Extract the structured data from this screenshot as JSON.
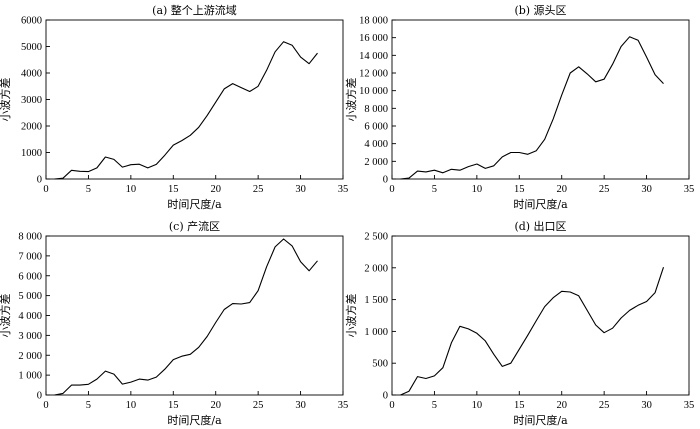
{
  "chart_data": [
    {
      "type": "line",
      "title": "(a) 整个上游流域",
      "xlabel": "时间尺度/a",
      "ylabel": "小波方差",
      "xlim": [
        0,
        35
      ],
      "ylim": [
        0,
        6000
      ],
      "xticks": [
        0,
        5,
        10,
        15,
        20,
        25,
        30,
        35
      ],
      "yticks": [
        0,
        1000,
        2000,
        3000,
        4000,
        5000,
        6000
      ],
      "ytick_labels": [
        "0",
        "1000",
        "2000",
        "3000",
        "4000",
        "5000",
        "6000"
      ],
      "grid": false,
      "series": [
        {
          "x": [
            1,
            2,
            3,
            4,
            5,
            6,
            7,
            8,
            9,
            10,
            11,
            12,
            13,
            14,
            15,
            16,
            17,
            18,
            19,
            20,
            21,
            22,
            23,
            24,
            25,
            26,
            27,
            28,
            29,
            30,
            31,
            32
          ],
          "y": [
            0,
            30,
            330,
            290,
            280,
            420,
            830,
            740,
            450,
            540,
            560,
            420,
            550,
            900,
            1280,
            1450,
            1650,
            1950,
            2400,
            2900,
            3400,
            3600,
            3450,
            3300,
            3500,
            4100,
            4800,
            5180,
            5050,
            4600,
            4350,
            4750
          ]
        }
      ]
    },
    {
      "type": "line",
      "title": "(b) 源头区",
      "xlabel": "时间尺度/a",
      "ylabel": "小波方差",
      "xlim": [
        0,
        35
      ],
      "ylim": [
        0,
        18000
      ],
      "xticks": [
        0,
        5,
        10,
        15,
        20,
        25,
        30,
        35
      ],
      "yticks": [
        0,
        2000,
        4000,
        6000,
        8000,
        10000,
        12000,
        14000,
        16000,
        18000
      ],
      "ytick_labels": [
        "0",
        "2 000",
        "4 000",
        "6 000",
        "8 000",
        "10 000",
        "12 000",
        "14 000",
        "16 000",
        "18 000"
      ],
      "grid": false,
      "series": [
        {
          "x": [
            1,
            2,
            3,
            4,
            5,
            6,
            7,
            8,
            9,
            10,
            11,
            12,
            13,
            14,
            15,
            16,
            17,
            18,
            19,
            20,
            21,
            22,
            23,
            24,
            25,
            26,
            27,
            28,
            29,
            30,
            31,
            32
          ],
          "y": [
            0,
            100,
            900,
            800,
            1000,
            700,
            1100,
            1000,
            1400,
            1700,
            1200,
            1500,
            2500,
            3000,
            3000,
            2800,
            3200,
            4500,
            6800,
            9500,
            12000,
            12700,
            11900,
            11000,
            11300,
            13000,
            15000,
            16100,
            15700,
            13800,
            11800,
            10800
          ]
        }
      ]
    },
    {
      "type": "line",
      "title": "(c) 产流区",
      "xlabel": "时间尺度/a",
      "ylabel": "小波方差",
      "xlim": [
        0,
        35
      ],
      "ylim": [
        0,
        8000
      ],
      "xticks": [
        0,
        5,
        10,
        15,
        20,
        25,
        30,
        35
      ],
      "yticks": [
        0,
        1000,
        2000,
        3000,
        4000,
        5000,
        6000,
        7000,
        8000
      ],
      "ytick_labels": [
        "0",
        "1 000",
        "2 000",
        "3 000",
        "4 000",
        "5 000",
        "6 000",
        "7 000",
        "8 000"
      ],
      "grid": false,
      "series": [
        {
          "x": [
            1,
            2,
            3,
            4,
            5,
            6,
            7,
            8,
            9,
            10,
            11,
            12,
            13,
            14,
            15,
            16,
            17,
            18,
            19,
            20,
            21,
            22,
            23,
            24,
            25,
            26,
            27,
            28,
            29,
            30,
            31,
            32
          ],
          "y": [
            0,
            80,
            500,
            500,
            540,
            800,
            1200,
            1050,
            550,
            650,
            800,
            750,
            900,
            1300,
            1780,
            1950,
            2050,
            2400,
            2950,
            3650,
            4300,
            4600,
            4580,
            4650,
            5250,
            6450,
            7450,
            7850,
            7500,
            6700,
            6250,
            6750
          ]
        }
      ]
    },
    {
      "type": "line",
      "title": "(d) 出口区",
      "xlabel": "时间尺度/a",
      "ylabel": "小波方差",
      "xlim": [
        0,
        35
      ],
      "ylim": [
        0,
        2500
      ],
      "xticks": [
        0,
        5,
        10,
        15,
        20,
        25,
        30,
        35
      ],
      "yticks": [
        0,
        500,
        1000,
        1500,
        2000,
        2500
      ],
      "ytick_labels": [
        "0",
        "500",
        "1 000",
        "1 500",
        "2 000",
        "2 500"
      ],
      "grid": false,
      "series": [
        {
          "x": [
            1,
            2,
            3,
            4,
            5,
            6,
            7,
            8,
            9,
            10,
            11,
            12,
            13,
            14,
            15,
            16,
            17,
            18,
            19,
            20,
            21,
            22,
            23,
            24,
            25,
            26,
            27,
            28,
            29,
            30,
            31,
            32
          ],
          "y": [
            0,
            60,
            290,
            260,
            300,
            430,
            820,
            1080,
            1040,
            970,
            850,
            640,
            450,
            500,
            720,
            940,
            1170,
            1390,
            1530,
            1630,
            1620,
            1560,
            1330,
            1100,
            980,
            1050,
            1210,
            1330,
            1410,
            1470,
            1610,
            2010
          ]
        }
      ]
    }
  ]
}
